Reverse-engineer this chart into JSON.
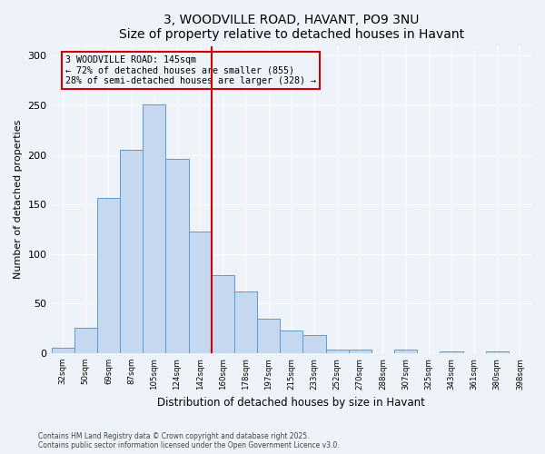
{
  "title": "3, WOODVILLE ROAD, HAVANT, PO9 3NU",
  "subtitle": "Size of property relative to detached houses in Havant",
  "xlabel": "Distribution of detached houses by size in Havant",
  "ylabel": "Number of detached properties",
  "categories": [
    "32sqm",
    "50sqm",
    "69sqm",
    "87sqm",
    "105sqm",
    "124sqm",
    "142sqm",
    "160sqm",
    "178sqm",
    "197sqm",
    "215sqm",
    "233sqm",
    "252sqm",
    "270sqm",
    "288sqm",
    "307sqm",
    "325sqm",
    "343sqm",
    "361sqm",
    "380sqm",
    "398sqm"
  ],
  "values": [
    5,
    26,
    157,
    205,
    251,
    196,
    123,
    79,
    62,
    35,
    23,
    18,
    4,
    4,
    0,
    4,
    0,
    2,
    0,
    2,
    0
  ],
  "bar_color": "#c5d8f0",
  "bar_edge_color": "#5b9bd5",
  "marker_index": 6,
  "marker_color": "#cc0000",
  "annotation_title": "3 WOODVILLE ROAD: 145sqm",
  "annotation_line1": "← 72% of detached houses are smaller (855)",
  "annotation_line2": "28% of semi-detached houses are larger (328) →",
  "annotation_box_color": "#cc0000",
  "ylim": [
    0,
    310
  ],
  "yticks": [
    0,
    50,
    100,
    150,
    200,
    250,
    300
  ],
  "background_color": "#eef2f9",
  "grid_color": "#ffffff",
  "footer1": "Contains HM Land Registry data © Crown copyright and database right 2025.",
  "footer2": "Contains public sector information licensed under the Open Government Licence v3.0."
}
